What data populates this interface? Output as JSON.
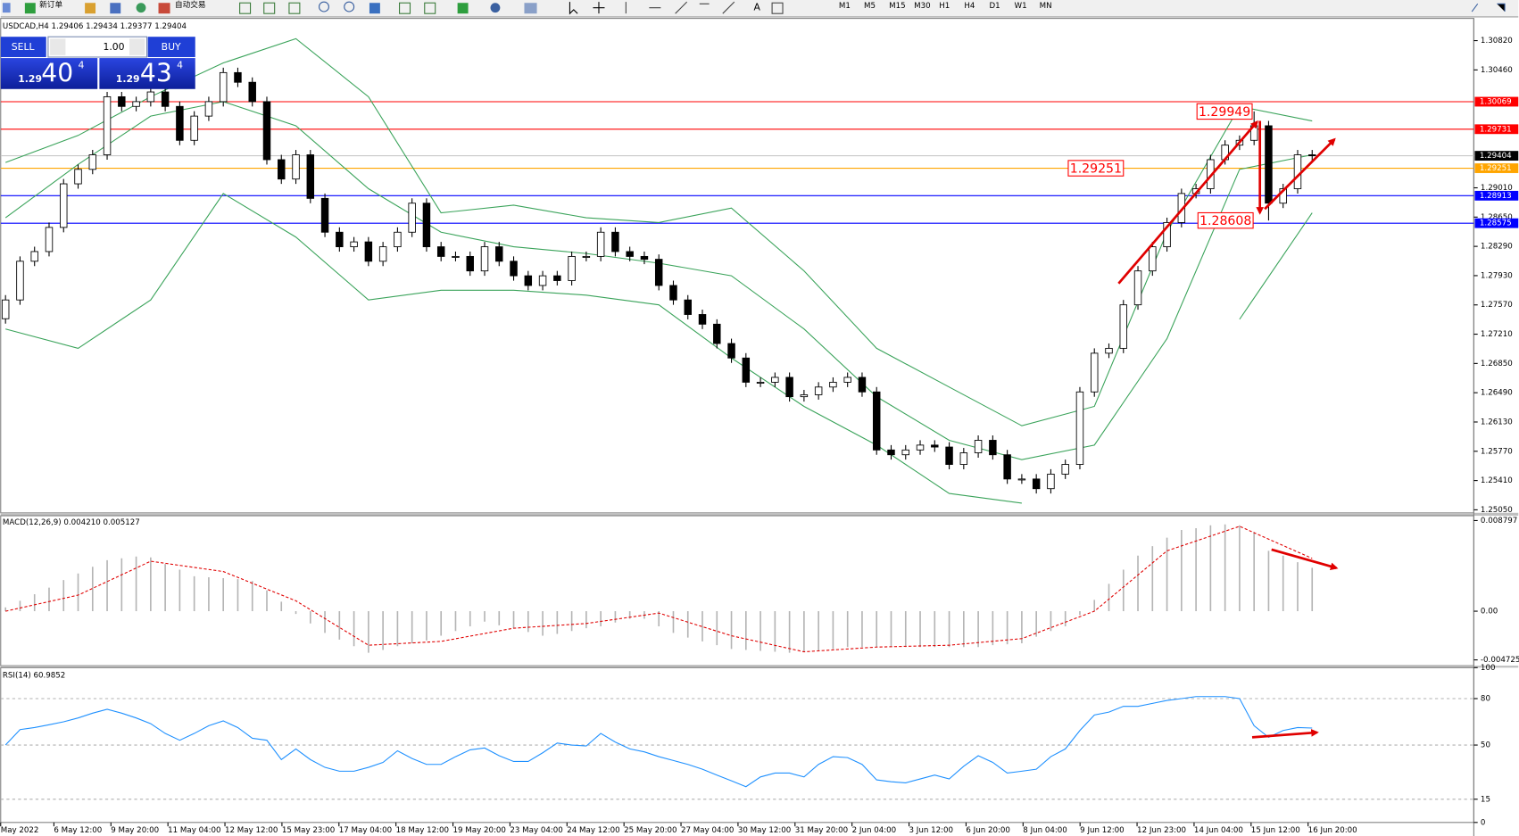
{
  "toolbar": {
    "new_order": "新订单",
    "auto_trading": "自动交易",
    "timeframes": [
      "M1",
      "M5",
      "M15",
      "M30",
      "H1",
      "H4",
      "D1",
      "W1",
      "MN"
    ]
  },
  "trade_panel": {
    "sell": "SELL",
    "lots": "1.00",
    "buy": "BUY",
    "sell_price": {
      "big": "1.29",
      "pips": "40",
      "point": "4"
    },
    "buy_price": {
      "big": "1.29",
      "pips": "43",
      "point": "4"
    }
  },
  "x_labels": [
    "May 2022",
    "6 May 12:00",
    "9 May 20:00",
    "11 May 04:00",
    "12 May 12:00",
    "15 May 23:00",
    "17 May 04:00",
    "18 May 12:00",
    "19 May 20:00",
    "23 May 04:00",
    "24 May 12:00",
    "25 May 20:00",
    "27 May 04:00",
    "30 May 12:00",
    "31 May 20:00",
    "2 Jun 04:00",
    "3 Jun 12:00",
    "6 Jun 20:00",
    "8 Jun 04:00",
    "9 Jun 12:00",
    "12 Jun 23:00",
    "14 Jun 04:00",
    "15 Jun 12:00",
    "16 Jun 20:00"
  ],
  "chart_data": [
    {
      "type": "candlestick",
      "title": "USDCAD,H4 1.29406 1.29434 1.29377 1.29404",
      "open": [
        1.274,
        1.27631,
        1.28107,
        1.28226,
        1.28523,
        1.29059,
        1.29237,
        1.29416,
        1.3013,
        1.30011,
        1.3007,
        1.30189,
        1.30011,
        1.29594,
        1.29892,
        1.3007,
        1.30427,
        1.30308,
        1.3007,
        1.29356,
        1.29118,
        1.29416,
        1.2888,
        1.28464,
        1.28285,
        1.28345,
        1.28107,
        1.28285,
        1.28464,
        1.28821,
        1.28285,
        1.28166,
        1.28166,
        1.27988,
        1.28285,
        1.28107,
        1.27928,
        1.27809,
        1.27928,
        1.27869,
        1.28166,
        1.28166,
        1.28464,
        1.28226,
        1.28166,
        1.28131,
        1.27809,
        1.27631,
        1.27452,
        1.27333,
        1.27095,
        1.26917,
        1.26619,
        1.26619,
        1.26679,
        1.26441,
        1.26465,
        1.2656,
        1.26619,
        1.26679,
        1.265,
        1.25786,
        1.25727,
        1.25786,
        1.25846,
        1.25822,
        1.25608,
        1.25751,
        1.25905,
        1.25727,
        1.25429,
        1.25429,
        1.2531,
        1.25489,
        1.25608,
        1.265,
        1.26976,
        1.27036,
        1.27571,
        1.27988,
        1.28285,
        1.28583,
        1.2894,
        1.28999,
        1.29356,
        1.29535,
        1.29594,
        1.29773,
        1.28821,
        1.28999,
        1.29416
      ],
      "high": [
        1.27691,
        1.28167,
        1.28286,
        1.28583,
        1.29119,
        1.29297,
        1.29476,
        1.3019,
        1.3019,
        1.3013,
        1.30249,
        1.30249,
        1.30071,
        1.29952,
        1.3013,
        1.30487,
        1.30487,
        1.30368,
        1.3013,
        1.29416,
        1.29476,
        1.29476,
        1.2894,
        1.28524,
        1.28405,
        1.28405,
        1.28345,
        1.28524,
        1.28881,
        1.28881,
        1.28345,
        1.28226,
        1.28226,
        1.28345,
        1.28345,
        1.28167,
        1.27988,
        1.27988,
        1.27988,
        1.28226,
        1.28226,
        1.28524,
        1.28524,
        1.28286,
        1.28226,
        1.28191,
        1.27869,
        1.27691,
        1.27512,
        1.27393,
        1.27155,
        1.26977,
        1.26679,
        1.26739,
        1.26739,
        1.26525,
        1.2662,
        1.26679,
        1.26739,
        1.26739,
        1.2656,
        1.25846,
        1.25846,
        1.25906,
        1.25906,
        1.25882,
        1.25811,
        1.25965,
        1.25965,
        1.25787,
        1.25489,
        1.25489,
        1.25549,
        1.25668,
        1.2656,
        1.27036,
        1.27096,
        1.27631,
        1.28048,
        1.28345,
        1.28643,
        1.29,
        1.29059,
        1.29416,
        1.29595,
        1.29654,
        1.29949,
        1.29833,
        1.29059,
        1.29476,
        1.29476
      ],
      "low": [
        1.2734,
        1.27571,
        1.28047,
        1.28166,
        1.28463,
        1.28999,
        1.29177,
        1.29356,
        1.29951,
        1.29951,
        1.3001,
        1.29951,
        1.29534,
        1.29534,
        1.29832,
        1.3001,
        1.30248,
        1.3001,
        1.29296,
        1.29058,
        1.29058,
        1.2882,
        1.28404,
        1.28225,
        1.28225,
        1.28047,
        1.28047,
        1.28225,
        1.28404,
        1.28225,
        1.28106,
        1.28106,
        1.27928,
        1.27928,
        1.28047,
        1.27868,
        1.27749,
        1.27749,
        1.27809,
        1.27809,
        1.28106,
        1.28106,
        1.28166,
        1.28106,
        1.28071,
        1.27749,
        1.27571,
        1.27392,
        1.27273,
        1.27035,
        1.26857,
        1.26559,
        1.26559,
        1.26559,
        1.26381,
        1.26381,
        1.26405,
        1.265,
        1.26559,
        1.2644,
        1.25726,
        1.25667,
        1.25667,
        1.25726,
        1.25762,
        1.25548,
        1.25548,
        1.25691,
        1.25667,
        1.25369,
        1.25369,
        1.2525,
        1.2525,
        1.25429,
        1.25548,
        1.2644,
        1.26916,
        1.26976,
        1.27511,
        1.27928,
        1.28225,
        1.28523,
        1.2888,
        1.28939,
        1.29296,
        1.29475,
        1.29534,
        1.28608,
        1.28761,
        1.28939,
        1.29344
      ],
      "close": [
        1.27631,
        1.28107,
        1.28226,
        1.28523,
        1.29059,
        1.29237,
        1.29416,
        1.3013,
        1.30011,
        1.3007,
        1.30189,
        1.30011,
        1.29594,
        1.29892,
        1.3007,
        1.30427,
        1.30308,
        1.3007,
        1.29356,
        1.29118,
        1.29416,
        1.2888,
        1.28464,
        1.28285,
        1.28345,
        1.28107,
        1.28285,
        1.28464,
        1.28821,
        1.28285,
        1.28166,
        1.28166,
        1.27988,
        1.28285,
        1.28107,
        1.27928,
        1.27809,
        1.27928,
        1.27869,
        1.28166,
        1.28166,
        1.28464,
        1.28226,
        1.28166,
        1.28131,
        1.27809,
        1.27631,
        1.27452,
        1.27333,
        1.27095,
        1.26917,
        1.26619,
        1.26619,
        1.26679,
        1.26441,
        1.26465,
        1.2656,
        1.26619,
        1.26679,
        1.265,
        1.25786,
        1.25727,
        1.25786,
        1.25846,
        1.25822,
        1.25608,
        1.25751,
        1.25905,
        1.25727,
        1.25429,
        1.25429,
        1.2531,
        1.25489,
        1.25608,
        1.265,
        1.26976,
        1.27036,
        1.27571,
        1.27988,
        1.28285,
        1.28583,
        1.2894,
        1.28999,
        1.29356,
        1.29535,
        1.29594,
        1.29773,
        1.28821,
        1.28999,
        1.29416,
        1.29404
      ],
      "color_up": "#ffffff",
      "color_down": "#000000",
      "bands": {
        "color": "#3aa35a",
        "x": [
          0,
          5,
          10,
          15,
          20,
          25,
          30,
          35,
          40,
          45,
          50,
          55,
          60,
          65,
          70,
          75,
          80,
          85,
          90
        ],
        "upper": [
          1.29321,
          1.29654,
          1.3013,
          1.30546,
          1.30844,
          1.3013,
          1.28702,
          1.28797,
          1.28642,
          1.28583,
          1.28761,
          1.27988,
          1.27036,
          1.2656,
          1.26084,
          1.26322,
          1.28464,
          1.30011,
          1.29832
        ],
        "middle": [
          1.28642,
          1.29297,
          1.29892,
          1.3007,
          1.29773,
          1.28999,
          1.28464,
          1.28285,
          1.28202,
          1.28083,
          1.27928,
          1.27274,
          1.26441,
          1.25905,
          1.25667,
          1.25846,
          1.27155,
          1.29237,
          1.29416
        ],
        "lower": [
          1.27274,
          1.27036,
          1.27631,
          1.2894,
          1.28404,
          1.27631,
          1.2775,
          1.2775,
          1.2769,
          1.27571,
          1.26917,
          1.26322,
          1.25846,
          1.25251,
          1.25132,
          null,
          null,
          1.27393,
          1.28702
        ]
      },
      "ylim": [
        1.25013,
        1.31058
      ],
      "yticks": [
        {
          "value": 1.3082,
          "label": "1.30820"
        },
        {
          "value": 1.3046,
          "label": "1.30460"
        },
        {
          "value": 1.2901,
          "label": "1.29010"
        },
        {
          "value": 1.2865,
          "label": "1.28650"
        },
        {
          "value": 1.2829,
          "label": "1.28290"
        },
        {
          "value": 1.2793,
          "label": "1.27930"
        },
        {
          "value": 1.2757,
          "label": "1.27570"
        },
        {
          "value": 1.2721,
          "label": "1.27210"
        },
        {
          "value": 1.2685,
          "label": "1.26850"
        },
        {
          "value": 1.2649,
          "label": "1.26490"
        },
        {
          "value": 1.2613,
          "label": "1.26130"
        },
        {
          "value": 1.2577,
          "label": "1.25770"
        },
        {
          "value": 1.2541,
          "label": "1.25410"
        },
        {
          "value": 1.2505,
          "label": "1.25050"
        }
      ],
      "levels": [
        {
          "value": 1.30069,
          "color": "#ff0000"
        },
        {
          "value": 1.29731,
          "color": "#ff0000"
        },
        {
          "value": 1.29404,
          "color": "#000000",
          "line_color": "#c8c8c8"
        },
        {
          "value": 1.29251,
          "color": "#ffa500"
        },
        {
          "value": 1.28913,
          "color": "#0000ff"
        },
        {
          "value": 1.28575,
          "color": "#0000ff"
        }
      ],
      "price_labels": [
        1.29949,
        1.29251,
        1.28608
      ],
      "label_color": "#ff0000"
    },
    {
      "type": "macd",
      "title": "MACD(12,26,9) 0.004210 0.005127",
      "histogram": [
        0.00037,
        0.00101,
        0.00165,
        0.00229,
        0.00302,
        0.00366,
        0.00431,
        0.00495,
        0.00513,
        0.00531,
        0.00522,
        0.00458,
        0.00403,
        0.00339,
        0.0033,
        0.00321,
        0.00311,
        0.00293,
        0.00202,
        0.00092,
        -0.00027,
        -0.00119,
        -0.00211,
        -0.00275,
        -0.00339,
        -0.00403,
        -0.00376,
        -0.00339,
        -0.00311,
        -0.00284,
        -0.00238,
        -0.00192,
        -0.00147,
        -0.00101,
        -0.00137,
        -0.00165,
        -0.00202,
        -0.00238,
        -0.0022,
        -0.00192,
        -0.00165,
        -0.00147,
        -0.0011,
        -0.00073,
        -0.00073,
        -0.00147,
        -0.00211,
        -0.00256,
        -0.00293,
        -0.0033,
        -0.00366,
        -0.00376,
        -0.00385,
        -0.00394,
        -0.00403,
        -0.00394,
        -0.00385,
        -0.00366,
        -0.00348,
        -0.00348,
        -0.00348,
        -0.00348,
        -0.00348,
        -0.00348,
        -0.00348,
        -0.00348,
        -0.00348,
        -0.00348,
        -0.0033,
        -0.00321,
        -0.00311,
        -0.00247,
        -0.00192,
        -0.00147,
        -0.00037,
        0.0011,
        0.00266,
        0.00403,
        0.0054,
        0.00632,
        0.00714,
        0.00788,
        0.00806,
        0.00834,
        0.00843,
        0.00834,
        0.00769,
        0.00586,
        0.0054,
        0.00476,
        0.00421
      ],
      "signal_x": [
        0,
        5,
        10,
        15,
        20,
        25,
        30,
        35,
        40,
        45,
        50,
        55,
        60,
        65,
        70,
        75,
        80,
        85,
        90
      ],
      "signal": [
        0,
        0.00156,
        0.00485,
        0.00385,
        0.00101,
        -0.0033,
        -0.00293,
        -0.00165,
        -0.00119,
        -0.00018,
        -0.00238,
        -0.00394,
        -0.00348,
        -0.0033,
        -0.00266,
        0,
        0.00586,
        0.00824,
        0.005127
      ],
      "histogram_color": "#b4b4b4",
      "signal_color": "#e00000",
      "ylim": [
        -0.004725,
        0.008797
      ],
      "yticks": [
        0.008797,
        {
          "value": 0,
          "label": "0.00"
        },
        -0.004725
      ]
    },
    {
      "type": "line",
      "title": "RSI(14) 60.9852",
      "values": [
        50.0,
        60.0,
        61.3,
        63.1,
        65.0,
        67.5,
        70.6,
        73.1,
        70.6,
        67.5,
        63.8,
        57.5,
        53.1,
        57.5,
        62.5,
        65.6,
        61.3,
        54.4,
        53.1,
        40.6,
        47.5,
        40.6,
        35.6,
        33.1,
        33.1,
        35.6,
        38.8,
        46.3,
        41.3,
        37.5,
        37.5,
        42.5,
        46.9,
        48.1,
        43.1,
        39.4,
        39.4,
        45.0,
        51.3,
        50.0,
        49.4,
        57.5,
        51.9,
        47.5,
        45.6,
        42.5,
        40.0,
        37.5,
        34.4,
        30.6,
        26.9,
        23.1,
        29.4,
        31.9,
        31.9,
        29.4,
        37.5,
        42.5,
        41.9,
        37.5,
        27.5,
        26.3,
        25.6,
        28.1,
        30.6,
        28.1,
        36.3,
        43.1,
        38.8,
        31.9,
        33.1,
        34.4,
        42.5,
        47.5,
        59.4,
        69.4,
        71.3,
        75.0,
        75.0,
        76.9,
        78.8,
        80.0,
        81.3,
        81.3,
        81.3,
        80.0,
        62.5,
        55.0,
        59.4,
        61.3,
        60.9852
      ],
      "color": "#1e90ff",
      "ylim": [
        0,
        100
      ],
      "yticks": [
        100,
        80,
        50,
        15,
        0
      ],
      "dashed_grid": true
    }
  ]
}
